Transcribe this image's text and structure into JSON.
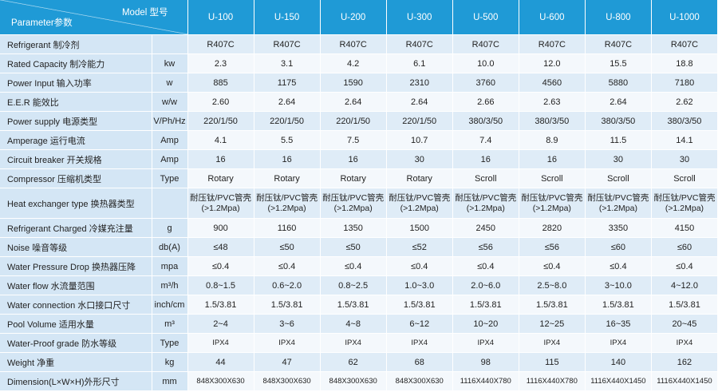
{
  "header": {
    "model_label": "Model 型号",
    "parameter_label": "Parameter参数",
    "models": [
      "U-100",
      "U-150",
      "U-200",
      "U-300",
      "U-500",
      "U-600",
      "U-800",
      "U-1000"
    ]
  },
  "table": {
    "rows": [
      {
        "label": "Refrigerant  制冷剂",
        "values": [
          "R407C",
          "R407C",
          "R407C",
          "R407C",
          "R407C",
          "R407C",
          "R407C",
          "R407C"
        ]
      },
      {
        "label": "Rated Capacity  制冷能力",
        "unit": "kw",
        "values": [
          "2.3",
          "3.1",
          "4.2",
          "6.1",
          "10.0",
          "12.0",
          "15.5",
          "18.8"
        ]
      },
      {
        "label": "Power Input   输入功率",
        "unit": "w",
        "values": [
          "885",
          "1175",
          "1590",
          "2310",
          "3760",
          "4560",
          "5880",
          "7180"
        ]
      },
      {
        "label": "E.E.R  能效比",
        "unit": "w/w",
        "values": [
          "2.60",
          "2.64",
          "2.64",
          "2.64",
          "2.66",
          "2.63",
          "2.64",
          "2.62"
        ]
      },
      {
        "label": "Power supply  电源类型",
        "unit": "V/Ph/Hz",
        "values": [
          "220/1/50",
          "220/1/50",
          "220/1/50",
          "220/1/50",
          "380/3/50",
          "380/3/50",
          "380/3/50",
          "380/3/50"
        ]
      },
      {
        "label": "Amperage  运行电流",
        "unit": "Amp",
        "values": [
          "4.1",
          "5.5",
          "7.5",
          "10.7",
          "7.4",
          "8.9",
          "11.5",
          "14.1"
        ]
      },
      {
        "label": "Circuit breaker  开关规格",
        "unit": "Amp",
        "values": [
          "16",
          "16",
          "16",
          "30",
          "16",
          "16",
          "30",
          "30"
        ]
      },
      {
        "label": "Compressor  压缩机类型",
        "unit": "Type",
        "values": [
          "Rotary",
          "Rotary",
          "Rotary",
          "Rotary",
          "Scroll",
          "Scroll",
          "Scroll",
          "Scroll"
        ]
      },
      {
        "label": "Heat exchanger type  换热器类型",
        "values": [
          [
            "耐压钛/PVC管壳",
            "(>1.2Mpa)"
          ],
          [
            "耐压钛/PVC管壳",
            "(>1.2Mpa)"
          ],
          [
            "耐压钛/PVC管壳",
            "(>1.2Mpa)"
          ],
          [
            "耐压钛/PVC管壳",
            "(>1.2Mpa)"
          ],
          [
            "耐压钛/PVC管壳",
            "(>1.2Mpa)"
          ],
          [
            "耐压钛/PVC管壳",
            "(>1.2Mpa)"
          ],
          [
            "耐压钛/PVC管壳",
            "(>1.2Mpa)"
          ],
          [
            "耐压钛/PVC管壳",
            "(>1.2Mpa)"
          ]
        ]
      },
      {
        "label": "Refrigerant Charged 冷媒充注量",
        "unit": "g",
        "values": [
          "900",
          "1160",
          "1350",
          "1500",
          "2450",
          "2820",
          "3350",
          "4150"
        ]
      },
      {
        "label": "Noise  噪音等级",
        "unit": "db(A)",
        "values": [
          "≤48",
          "≤50",
          "≤50",
          "≤52",
          "≤56",
          "≤56",
          "≤60",
          "≤60"
        ]
      },
      {
        "label": "Water Pressure Drop  换热器压降",
        "unit": "mpa",
        "values": [
          "≤0.4",
          "≤0.4",
          "≤0.4",
          "≤0.4",
          "≤0.4",
          "≤0.4",
          "≤0.4",
          "≤0.4"
        ]
      },
      {
        "label": "Water flow  水流量范围",
        "unit": "m³/h",
        "values": [
          "0.8~1.5",
          "0.6~2.0",
          "0.8~2.5",
          "1.0~3.0",
          "2.0~6.0",
          "2.5~8.0",
          "3~10.0",
          "4~12.0"
        ]
      },
      {
        "label": "Water connection 水口接口尺寸",
        "unit": "inch/cm",
        "values": [
          "1.5/3.81",
          "1.5/3.81",
          "1.5/3.81",
          "1.5/3.81",
          "1.5/3.81",
          "1.5/3.81",
          "1.5/3.81",
          "1.5/3.81"
        ]
      },
      {
        "label": "Pool Volume  适用水量",
        "unit": "m³",
        "values": [
          "2~4",
          "3~6",
          "4~8",
          "6~12",
          "10~20",
          "12~25",
          "16~35",
          "20~45"
        ]
      },
      {
        "label": "Water-Proof grade 防水等级",
        "unit": "Type",
        "values": [
          "IPX4",
          "IPX4",
          "IPX4",
          "IPX4",
          "IPX4",
          "IPX4",
          "IPX4",
          "IPX4"
        ]
      },
      {
        "label": "Weight  净重",
        "unit": "kg",
        "values": [
          "44",
          "47",
          "62",
          "68",
          "98",
          "115",
          "140",
          "162"
        ]
      },
      {
        "label": "Dimension(L×W×H)外形尺寸",
        "unit": "mm",
        "values": [
          "848X300X630",
          "848X300X630",
          "848X300X630",
          "848X300X630",
          "1116X440X780",
          "1116X440X780",
          "1116X440X1450",
          "1116X440X1450"
        ]
      }
    ]
  }
}
